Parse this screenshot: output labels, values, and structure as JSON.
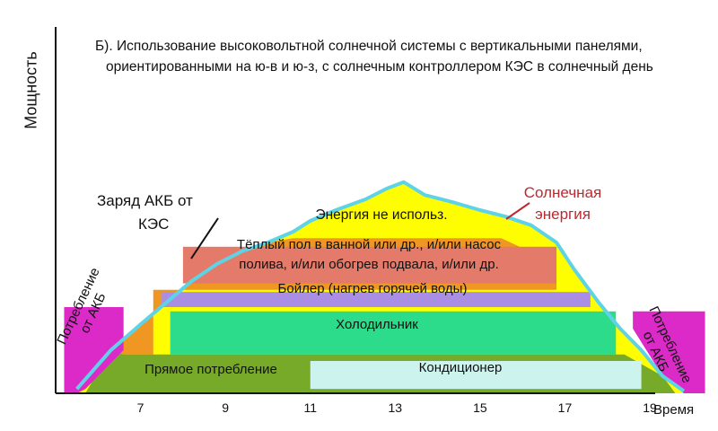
{
  "chart_data": {
    "type": "area",
    "title_line1": "Б). Использование высоковольтной солнечной системы с вертикальными панелями,",
    "title_line2": "ориентированными на ю-в и ю-з, с солнечным контроллером КЭС в солнечный день",
    "ylabel": "Мощность",
    "xlabel": "Время",
    "x_ticks": [
      "7",
      "9",
      "11",
      "13",
      "15",
      "17",
      "19"
    ],
    "solar_curve": {
      "x": [
        5.5,
        6.3,
        7.0,
        7.6,
        8.2,
        8.8,
        9.4,
        10.0,
        10.6,
        11.0,
        11.6,
        12.3,
        12.8,
        13.2,
        13.7,
        14.3,
        15.0,
        15.6,
        16.2,
        16.8,
        17.2,
        17.8,
        18.3,
        18.8,
        19.3,
        19.8
      ],
      "y": [
        0.02,
        0.2,
        0.32,
        0.42,
        0.52,
        0.6,
        0.66,
        0.7,
        0.75,
        0.8,
        0.85,
        0.9,
        0.95,
        0.98,
        0.92,
        0.89,
        0.85,
        0.82,
        0.78,
        0.7,
        0.58,
        0.42,
        0.3,
        0.2,
        0.08,
        0.01
      ]
    },
    "series": [
      {
        "name": "Прямое потребление",
        "x_range": [
          5.7,
          19.6
        ],
        "y_range": [
          0.0,
          0.15
        ],
        "color": "#78aa2a"
      },
      {
        "name": "Кондиционер",
        "x_range": [
          11.0,
          18.8
        ],
        "y_range": [
          0.02,
          0.15
        ],
        "color": "#cdf3ef"
      },
      {
        "name": "Холодильник",
        "x_range": [
          7.7,
          18.2
        ],
        "y_range": [
          0.18,
          0.38
        ],
        "color": "#2ddc8b"
      },
      {
        "name": "Бойлер (нагрев горячей воды)",
        "x_range": [
          7.5,
          17.6
        ],
        "y_range": [
          0.4,
          0.47
        ],
        "color": "#a98ee3"
      },
      {
        "name": "Тёплый пол в ванной или др., и/или насос полива, и/или обогрев подвала, и/или др.",
        "x_range": [
          8.0,
          16.8
        ],
        "y_range": [
          0.51,
          0.68
        ],
        "color": "#e47a6a"
      },
      {
        "name": "Энергия не использ.",
        "color": "#fefe00"
      },
      {
        "name": "Заряд АКБ от КЭС",
        "color": "#ef9722"
      },
      {
        "name": "Потребление от АКБ",
        "color": "#dc2ac8"
      }
    ],
    "labels": {
      "solar_line1": "Солнечная",
      "solar_line2": "энергия",
      "charge_line1": "Заряд АКБ от",
      "charge_line2": "КЭС",
      "battery_line1": "Потребление",
      "battery_line2": "от АКБ",
      "boiler": "Бойлер (нагрев горячей воды)",
      "fridge": "Холодильник",
      "direct": "Прямое потребление",
      "ac": "Кондиционер",
      "unused": "Энергия не использ.",
      "floor_line1": "Тёплый пол в ванной или др., и/или насос",
      "floor_line2": "полива, и/или обогрев подвала, и/или др."
    },
    "xlim": [
      5,
      20.5
    ],
    "ylim": [
      0,
      1
    ],
    "colors": {
      "solar_line": "#5fd3e6",
      "unused": "#fefe00",
      "charge": "#ef9722",
      "battery": "#dc2ac8",
      "direct": "#78aa2a",
      "ac": "#cdf3ef",
      "fridge": "#2ddc8b",
      "boiler": "#a98ee3",
      "floor": "#e47a6a",
      "solar_label": "#c2262e"
    }
  }
}
